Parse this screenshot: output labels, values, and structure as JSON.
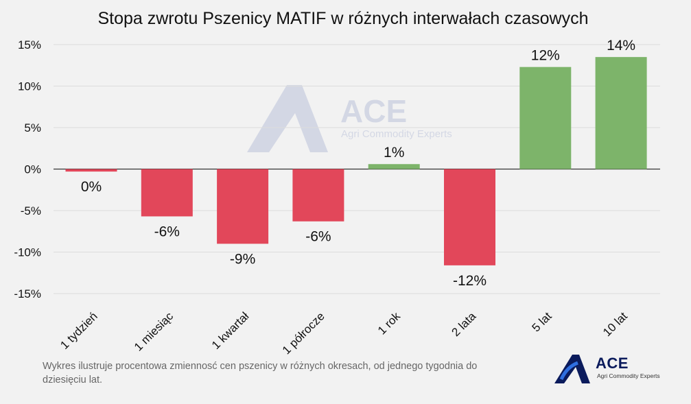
{
  "chart_data": {
    "type": "bar",
    "title": "Stopa zwrotu Pszenicy MATIF w różnych interwałach czasowych",
    "categories": [
      "1 tydzień",
      "1 miesiąc",
      "1 kwartał",
      "1 półrocze",
      "1 rok",
      "2 lata",
      "5 lat",
      "10 lat"
    ],
    "values": [
      -0.3,
      -5.7,
      -9.0,
      -6.3,
      0.6,
      -11.6,
      12.3,
      13.5
    ],
    "value_labels": [
      "0%",
      "-6%",
      "-9%",
      "-6%",
      "1%",
      "-12%",
      "12%",
      "14%"
    ],
    "yticks": [
      15,
      10,
      5,
      0,
      -5,
      -10,
      -15
    ],
    "ytick_labels": [
      "15%",
      "10%",
      "5%",
      "0%",
      "-5%",
      "-10%",
      "-15%"
    ],
    "ylim": [
      -15,
      15
    ],
    "grid": true,
    "colors": {
      "positive": "#7db46a",
      "negative": "#e2475a",
      "grid": "#dcdcdc",
      "axis": "#333333"
    }
  },
  "caption": "Wykres ilustruje procentowa zmiennosć cen pszenicy w różnych okresach, od jednego tygodnia do dziesięciu lat.",
  "logo": {
    "name": "ACE",
    "subtitle": "Agri Commodity Experts"
  },
  "watermark": {
    "name": "ACE",
    "subtitle": "Agri Commodity Experts"
  }
}
